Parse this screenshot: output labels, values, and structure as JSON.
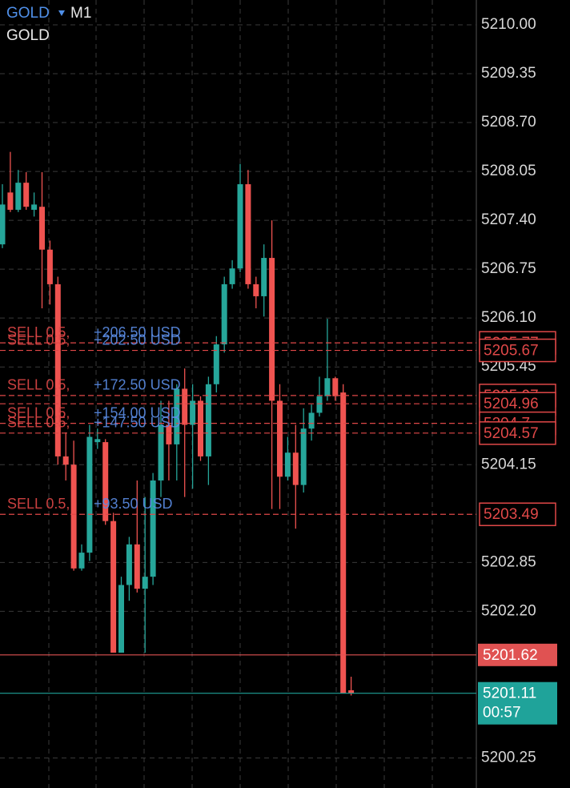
{
  "chart_data": {
    "type": "candlestick",
    "symbol": "GOLD",
    "timeframe": "M1",
    "subtitle": "GOLD",
    "up_color": "#26a69a",
    "down_color": "#ef5350",
    "grid": true,
    "ylim": [
      5199.85,
      5210.33
    ],
    "yticks": [
      {
        "value": 5210,
        "label": "5210.00"
      },
      5209.35,
      {
        "value": 5208.7,
        "label": "5208.70"
      },
      5208.05,
      {
        "value": 5207.4,
        "label": "5207.40"
      },
      5206.75,
      {
        "value": 5206.1,
        "label": "5206.10"
      },
      5205.45,
      5204.15,
      5202.85,
      {
        "value": 5202.2,
        "label": "5202.20"
      },
      5200.25
    ],
    "candles": [
      {
        "open": 5207.08,
        "high": 5207.88,
        "low": 5207.03,
        "close": 5207.61
      },
      {
        "open": 5207.77,
        "high": 5208.31,
        "low": 5207.51,
        "close": 5207.54
      },
      {
        "open": 5207.54,
        "high": 5208.07,
        "low": 5207.51,
        "close": 5207.9
      },
      {
        "open": 5207.9,
        "high": 5208.04,
        "low": 5207.54,
        "close": 5207.58
      },
      {
        "open": 5207.54,
        "high": 5207.77,
        "low": 5207.45,
        "close": 5207.61
      },
      {
        "open": 5207.58,
        "high": 5208.04,
        "low": 5206.23,
        "close": 5207.01
      },
      {
        "open": 5207.01,
        "high": 5207.13,
        "low": 5206.28,
        "close": 5206.55
      },
      {
        "open": 5206.55,
        "high": 5206.65,
        "low": 5204.15,
        "close": 5204.26
      },
      {
        "open": 5204.26,
        "high": 5204.58,
        "low": 5203.94,
        "close": 5204.15
      },
      {
        "open": 5204.15,
        "high": 5204.47,
        "low": 5202.74,
        "close": 5202.77
      },
      {
        "open": 5202.77,
        "high": 5203.09,
        "low": 5202.74,
        "close": 5202.98
      },
      {
        "open": 5202.98,
        "high": 5204.68,
        "low": 5202.87,
        "close": 5204.52
      },
      {
        "open": 5204.45,
        "high": 5204.63,
        "low": 5204.36,
        "close": 5204.49
      },
      {
        "open": 5204.45,
        "high": 5204.49,
        "low": 5203.35,
        "close": 5203.4
      },
      {
        "open": 5203.4,
        "high": 5203.51,
        "low": 5201.65,
        "close": 5201.65
      },
      {
        "open": 5201.65,
        "high": 5202.66,
        "low": 5201.65,
        "close": 5202.55
      },
      {
        "open": 5202.55,
        "high": 5203.19,
        "low": 5202.34,
        "close": 5203.09
      },
      {
        "open": 5203.09,
        "high": 5203.94,
        "low": 5202.45,
        "close": 5202.5
      },
      {
        "open": 5202.5,
        "high": 5203.72,
        "low": 5201.65,
        "close": 5202.66
      },
      {
        "open": 5202.66,
        "high": 5204.04,
        "low": 5202.55,
        "close": 5203.94
      },
      {
        "open": 5203.94,
        "high": 5205.0,
        "low": 5203.72,
        "close": 5204.68
      },
      {
        "open": 5204.68,
        "high": 5205.0,
        "low": 5203.94,
        "close": 5204.42
      },
      {
        "open": 5204.42,
        "high": 5205.22,
        "low": 5203.94,
        "close": 5205.16
      },
      {
        "open": 5205.16,
        "high": 5205.43,
        "low": 5203.72,
        "close": 5204.68
      },
      {
        "open": 5204.68,
        "high": 5205.22,
        "low": 5203.83,
        "close": 5205.0
      },
      {
        "open": 5205.0,
        "high": 5205.06,
        "low": 5204.2,
        "close": 5204.26
      },
      {
        "open": 5204.26,
        "high": 5205.32,
        "low": 5203.88,
        "close": 5205.22
      },
      {
        "open": 5205.22,
        "high": 5205.86,
        "low": 5205.11,
        "close": 5205.75
      },
      {
        "open": 5205.75,
        "high": 5206.65,
        "low": 5205.64,
        "close": 5206.55
      },
      {
        "open": 5206.55,
        "high": 5206.87,
        "low": 5206.49,
        "close": 5206.76
      },
      {
        "open": 5206.76,
        "high": 5208.15,
        "low": 5206.71,
        "close": 5207.88
      },
      {
        "open": 5207.88,
        "high": 5208.07,
        "low": 5206.49,
        "close": 5206.55
      },
      {
        "open": 5206.55,
        "high": 5206.65,
        "low": 5206.23,
        "close": 5206.39
      },
      {
        "open": 5206.39,
        "high": 5207.08,
        "low": 5206.12,
        "close": 5206.9
      },
      {
        "open": 5206.9,
        "high": 5207.4,
        "low": 5203.56,
        "close": 5205.0
      },
      {
        "open": 5205.0,
        "high": 5205.22,
        "low": 5203.56,
        "close": 5203.99
      },
      {
        "open": 5203.99,
        "high": 5204.52,
        "low": 5203.94,
        "close": 5204.31
      },
      {
        "open": 5204.31,
        "high": 5204.68,
        "low": 5203.3,
        "close": 5203.88
      },
      {
        "open": 5203.88,
        "high": 5204.9,
        "low": 5203.78,
        "close": 5204.63
      },
      {
        "open": 5204.63,
        "high": 5204.95,
        "low": 5204.47,
        "close": 5204.84
      },
      {
        "open": 5204.84,
        "high": 5205.32,
        "low": 5204.79,
        "close": 5205.06
      },
      {
        "open": 5205.06,
        "high": 5206.09,
        "low": 5205.0,
        "close": 5205.3
      },
      {
        "open": 5205.3,
        "high": 5205.32,
        "low": 5205.0,
        "close": 5205.06
      },
      {
        "open": 5205.11,
        "high": 5205.22,
        "low": 5201.11,
        "close": 5201.11
      },
      {
        "open": 5201.15,
        "high": 5201.33,
        "low": 5201.08,
        "close": 5201.11
      }
    ],
    "orders": [
      {
        "text": "SELL 0.5,",
        "profit": "+206.50 USD",
        "price": 5205.77
      },
      {
        "text": "SELL 0.5,",
        "profit": "+202.50 USD",
        "price": 5205.67
      },
      {
        "text": "SELL 0.5,",
        "profit": "+172.50 USD",
        "price": 5205.07
      },
      {
        "price": 5204.96
      },
      {
        "text": "SELL 0.5,",
        "profit": "+154.00 USD",
        "price": 5204.7
      },
      {
        "text": "SELL 0.5,",
        "profit": "+147.50 USD",
        "price": 5204.57
      },
      {
        "text": "SELL 0.5,",
        "profit": "+93.50 USD",
        "price": 5203.49
      }
    ],
    "order_color": "#e04848",
    "profit_color": "#5b8de6",
    "price_lines": [
      {
        "price": 5201.62,
        "color": "#e05252"
      },
      {
        "price": 5201.11,
        "color": "#1fa39a",
        "timer": "00:57"
      }
    ]
  }
}
